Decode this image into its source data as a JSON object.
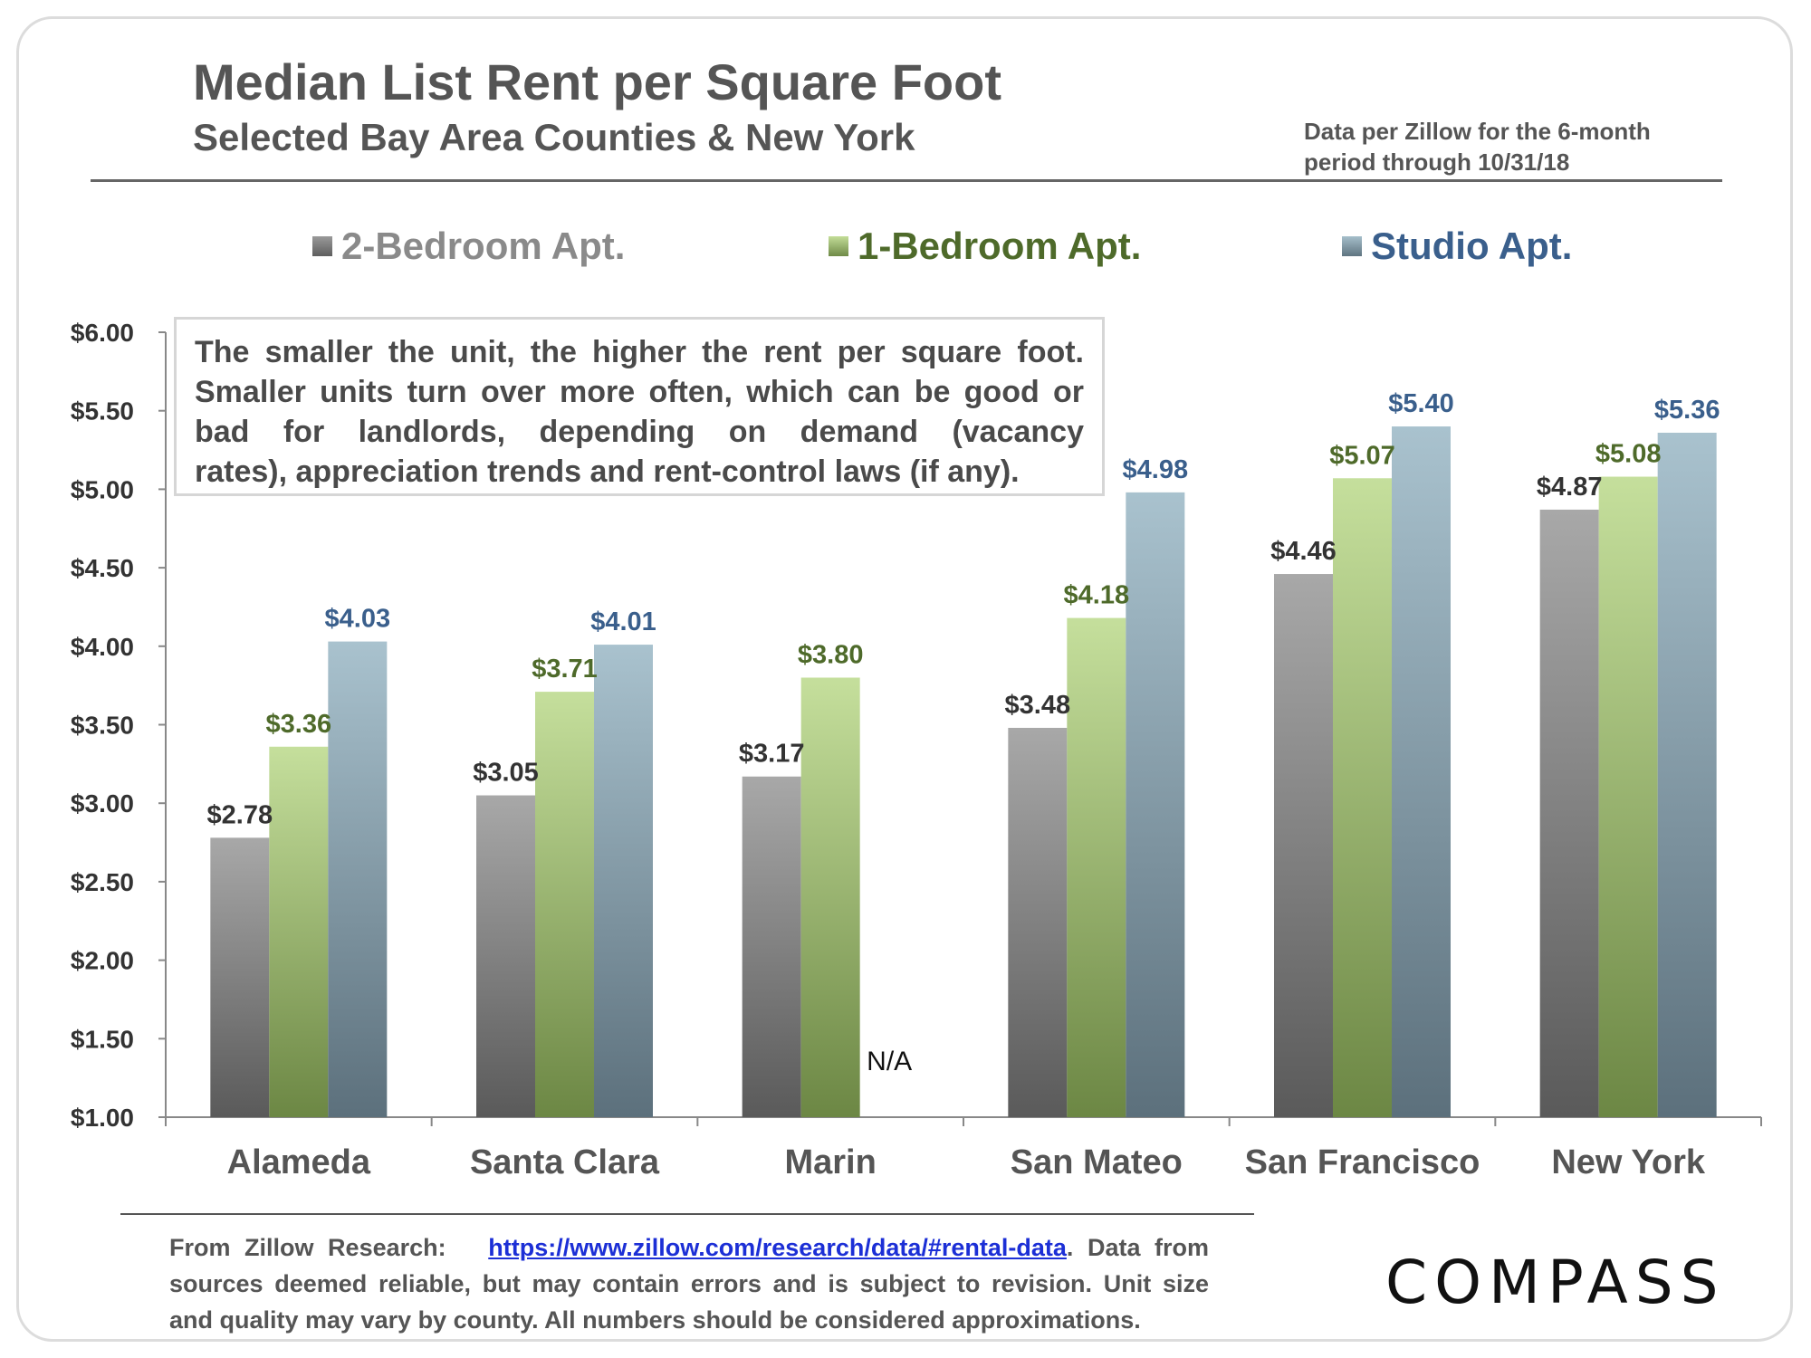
{
  "header": {
    "title": "Median List Rent per Square Foot",
    "subtitle": "Selected Bay Area Counties & New York",
    "note": "Data per Zillow for the 6-month period through 10/31/18"
  },
  "colors": {
    "two_bed": "#8c8c8c",
    "one_bed": "#a6c27a",
    "studio": "#8aa6b4",
    "one_bed_text": "#4e6a2a",
    "studio_text": "#3a5f8c",
    "two_bed_text": "#333333"
  },
  "callout": {
    "line1": "The smaller the unit, the higher the rent per square foot.",
    "line2": "Smaller units turn over more often, which can be good or",
    "line3": "bad for landlords, depending on demand (vacancy",
    "line4": "rates), appreciation trends and rent-control laws (if any)."
  },
  "chart_data": {
    "type": "bar",
    "title": "Median List Rent per Square Foot",
    "categories": [
      "Alameda",
      "Santa Clara",
      "Marin",
      "San Mateo",
      "San Francisco",
      "New York"
    ],
    "series": [
      {
        "name": "2-Bedroom Apt.",
        "values": [
          2.78,
          3.05,
          3.17,
          3.48,
          4.46,
          4.87
        ],
        "labels": [
          "$2.78",
          "$3.05",
          "$3.17",
          "$3.48",
          "$4.46",
          "$4.87"
        ]
      },
      {
        "name": "1-Bedroom Apt.",
        "values": [
          3.36,
          3.71,
          3.8,
          4.18,
          5.07,
          5.08
        ],
        "labels": [
          "$3.36",
          "$3.71",
          "$3.80",
          "$4.18",
          "$5.07",
          "$5.08"
        ]
      },
      {
        "name": "Studio Apt.",
        "values": [
          4.03,
          4.01,
          null,
          4.98,
          5.4,
          5.36
        ],
        "labels": [
          "$4.03",
          "$4.01",
          "N/A",
          "$4.98",
          "$5.40",
          "$5.36"
        ]
      }
    ],
    "ylim": [
      1.0,
      6.0
    ],
    "yticks": [
      1.0,
      1.5,
      2.0,
      2.5,
      3.0,
      3.5,
      4.0,
      4.5,
      5.0,
      5.5,
      6.0
    ],
    "ytick_labels": [
      "$1.00",
      "$1.50",
      "$2.00",
      "$2.50",
      "$3.00",
      "$3.50",
      "$4.00",
      "$4.50",
      "$5.00",
      "$5.50",
      "$6.00"
    ],
    "xlabel": "",
    "ylabel": "",
    "grid": false,
    "legend": "top"
  },
  "footer": {
    "prefix": "From Zillow Research:",
    "link": "https://www.zillow.com/research/data/#rental-data",
    "line1_rest": ". Data from",
    "line2": "sources deemed reliable, but may contain errors and is subject to revision. Unit size",
    "line3": "and quality may vary by county. All numbers  should be considered approximations."
  },
  "logo": {
    "text": "COMPASS"
  }
}
